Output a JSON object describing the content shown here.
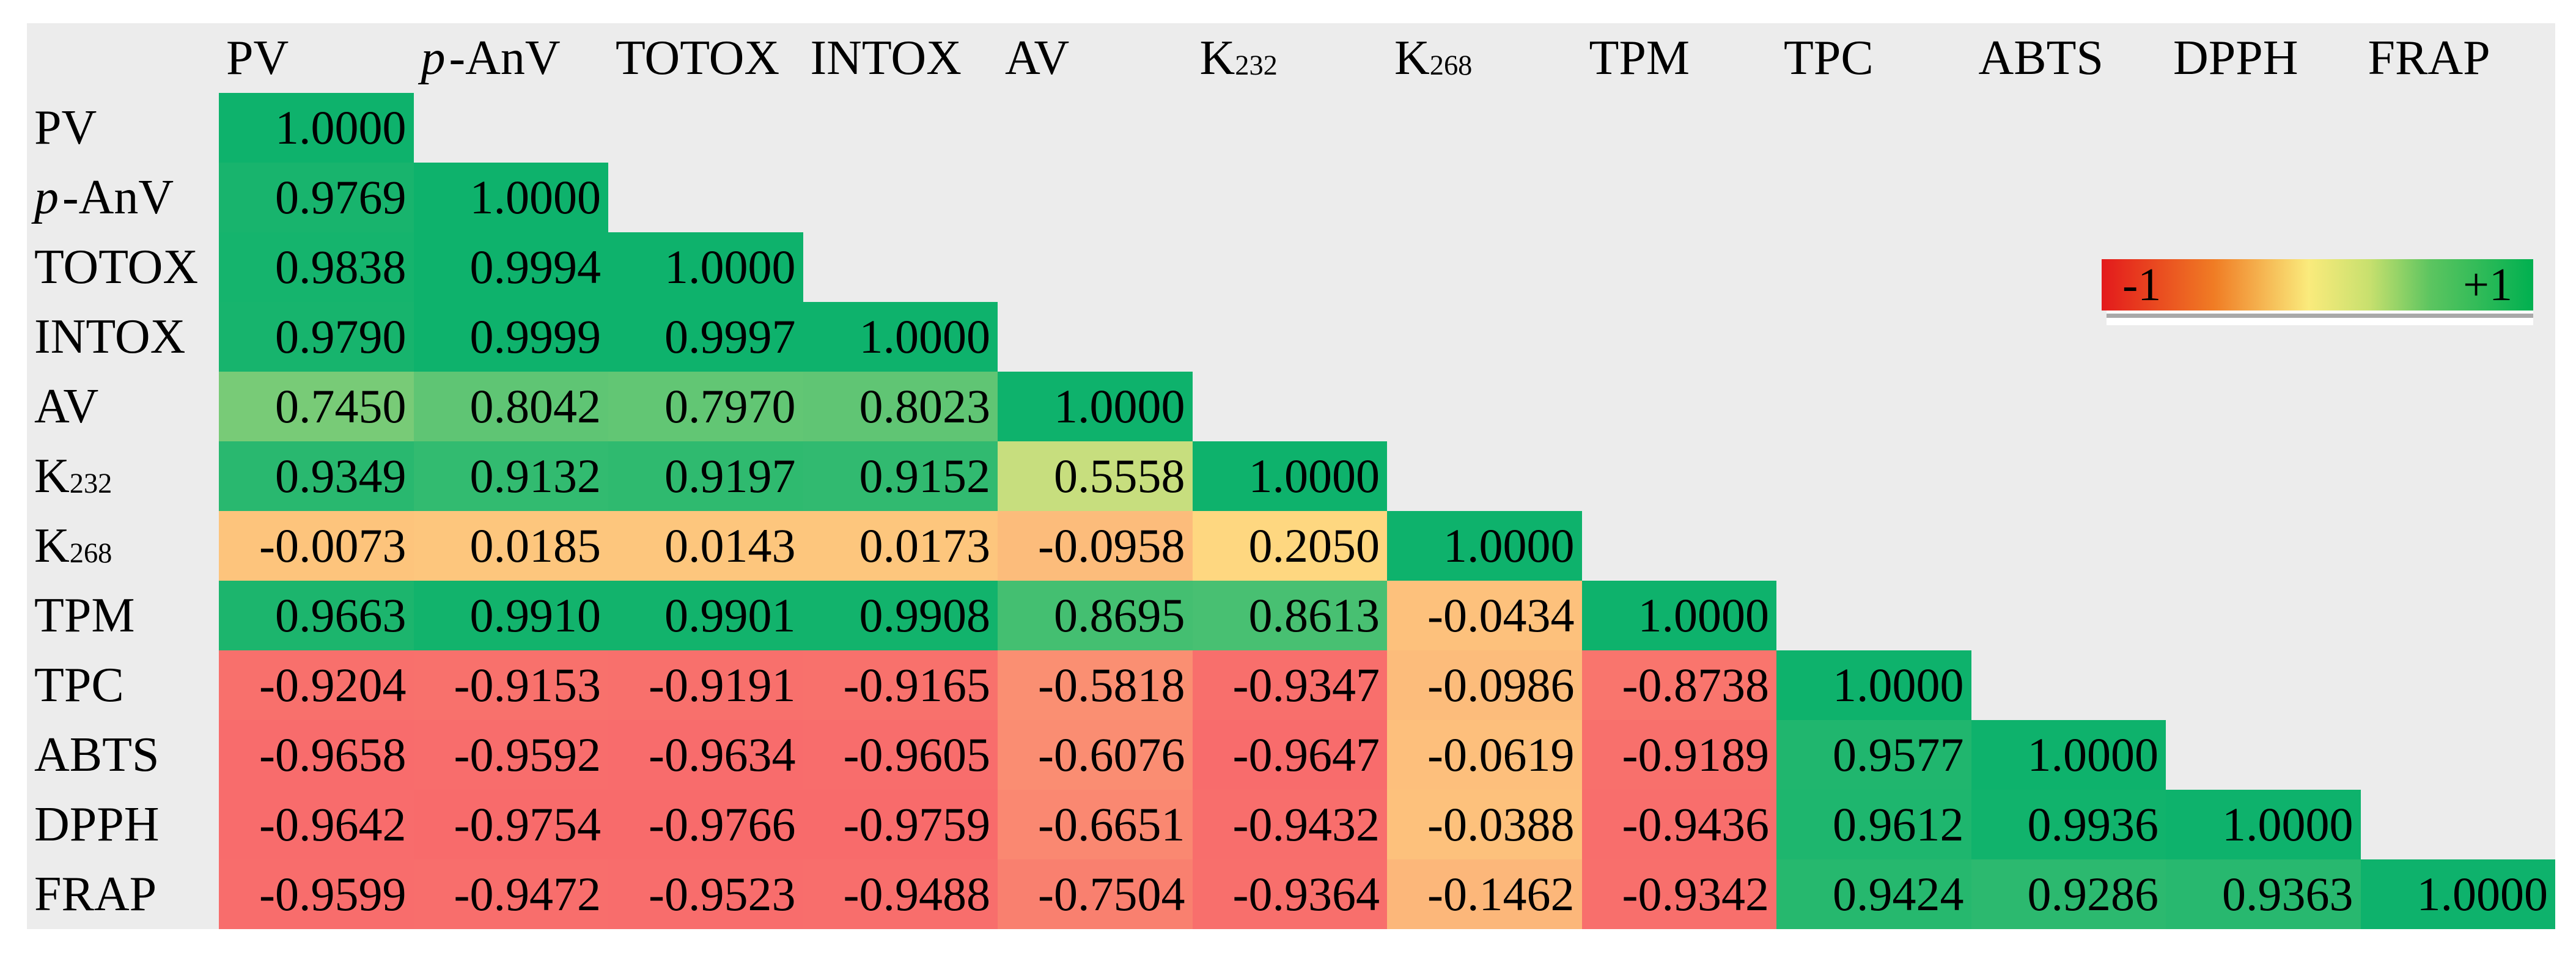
{
  "colors": {
    "page_background": "#FFFFFF",
    "panel_background": "#ECECEC",
    "text": "#000000",
    "legend_shadow": "#A9A9A9"
  },
  "chart_data": {
    "type": "heatmap",
    "subtype": "lower-triangular-correlation-matrix",
    "title": "",
    "variables": [
      {
        "base": "PV"
      },
      {
        "italic": "p",
        "base": "-AnV"
      },
      {
        "base": "TOTOX"
      },
      {
        "base": "INTOX"
      },
      {
        "base": "AV"
      },
      {
        "base": "K",
        "sub": "232"
      },
      {
        "base": "K",
        "sub": "268"
      },
      {
        "base": "TPM"
      },
      {
        "base": "TPC"
      },
      {
        "base": "ABTS"
      },
      {
        "base": "DPPH"
      },
      {
        "base": "FRAP"
      }
    ],
    "matrix": [
      [
        "1.0000"
      ],
      [
        "0.9769",
        "1.0000"
      ],
      [
        "0.9838",
        "0.9994",
        "1.0000"
      ],
      [
        "0.9790",
        "0.9999",
        "0.9997",
        "1.0000"
      ],
      [
        "0.7450",
        "0.8042",
        "0.7970",
        "0.8023",
        "1.0000"
      ],
      [
        "0.9349",
        "0.9132",
        "0.9197",
        "0.9152",
        "0.5558",
        "1.0000"
      ],
      [
        "-0.0073",
        "0.0185",
        "0.0143",
        "0.0173",
        "-0.0958",
        "0.2050",
        "1.0000"
      ],
      [
        "0.9663",
        "0.9910",
        "0.9901",
        "0.9908",
        "0.8695",
        "0.8613",
        "-0.0434",
        "1.0000"
      ],
      [
        "-0.9204",
        "-0.9153",
        "-0.9191",
        "-0.9165",
        "-0.5818",
        "-0.9347",
        "-0.0986",
        "-0.8738",
        "1.0000"
      ],
      [
        "-0.9658",
        "-0.9592",
        "-0.9634",
        "-0.9605",
        "-0.6076",
        "-0.9647",
        "-0.0619",
        "-0.9189",
        "0.9577",
        "1.0000"
      ],
      [
        "-0.9642",
        "-0.9754",
        "-0.9766",
        "-0.9759",
        "-0.6651",
        "-0.9432",
        "-0.0388",
        "-0.9436",
        "0.9612",
        "0.9936",
        "1.0000"
      ],
      [
        "-0.9599",
        "-0.9472",
        "-0.9523",
        "-0.9488",
        "-0.7504",
        "-0.9364",
        "-0.1462",
        "-0.9342",
        "0.9424",
        "0.9286",
        "0.9363",
        "1.0000"
      ]
    ],
    "color_scale": {
      "stops": [
        {
          "value": -1,
          "color": "#F8696B"
        },
        {
          "value": 0.42,
          "color": "#FFEB84"
        },
        {
          "value": 1,
          "color": "#0EB26C"
        }
      ]
    },
    "legend": {
      "min_label": "-1",
      "max_label": "+1",
      "gradient": [
        "#E31A1C",
        "#F07C24",
        "#FAEB7C",
        "#C8E06E",
        "#5DC560",
        "#00B050"
      ]
    }
  }
}
